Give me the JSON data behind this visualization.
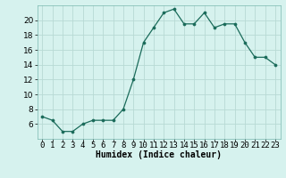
{
  "x": [
    0,
    1,
    2,
    3,
    4,
    5,
    6,
    7,
    8,
    9,
    10,
    11,
    12,
    13,
    14,
    15,
    16,
    17,
    18,
    19,
    20,
    21,
    22,
    23
  ],
  "y": [
    7,
    6.5,
    5,
    5,
    6,
    6.5,
    6.5,
    6.5,
    8,
    12,
    17,
    19,
    21,
    21.5,
    19.5,
    19.5,
    21,
    19,
    19.5,
    19.5,
    17,
    15,
    15,
    14
  ],
  "line_color": "#1a6b5a",
  "marker_color": "#1a6b5a",
  "bg_color": "#d6f2ee",
  "grid_color": "#b8dad4",
  "xlabel": "Humidex (Indice chaleur)",
  "ylim": [
    4,
    22
  ],
  "xlim": [
    -0.5,
    23.5
  ],
  "yticks": [
    6,
    8,
    10,
    12,
    14,
    16,
    18,
    20
  ],
  "xtick_labels": [
    "0",
    "1",
    "2",
    "3",
    "4",
    "5",
    "6",
    "7",
    "8",
    "9",
    "10",
    "11",
    "12",
    "13",
    "14",
    "15",
    "16",
    "17",
    "18",
    "19",
    "20",
    "21",
    "22",
    "23"
  ],
  "label_fontsize": 7,
  "tick_fontsize": 6.5
}
